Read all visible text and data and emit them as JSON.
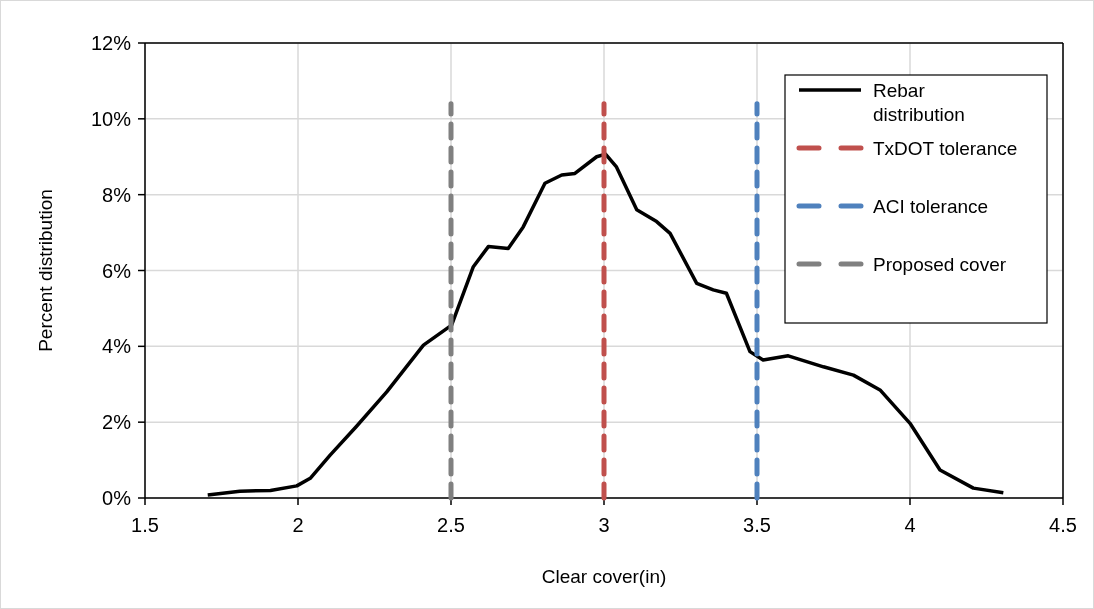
{
  "chart_data": {
    "type": "line",
    "xlabel": "Clear cover(in)",
    "ylabel": "Percent distribution",
    "xlim": [
      1.5,
      4.5
    ],
    "xticks": [
      1.5,
      2,
      2.5,
      3,
      3.5,
      4,
      4.5
    ],
    "ylim": [
      0,
      12
    ],
    "yticks": [
      {
        "value": 0,
        "label": "0%"
      },
      {
        "value": 2,
        "label": "2%"
      },
      {
        "value": 4,
        "label": "4%"
      },
      {
        "value": 6,
        "label": "6%"
      },
      {
        "value": 8,
        "label": "8%"
      },
      {
        "value": 10,
        "label": "10%"
      },
      {
        "value": 12,
        "label": "12%"
      }
    ],
    "grid": true,
    "legend": "top right",
    "series": [
      {
        "name": "Rebar distribution",
        "color": "#000000",
        "line_style": "solid",
        "x": [
          1.705,
          1.81,
          1.91,
          1.996,
          2.04,
          2.105,
          2.19,
          2.29,
          2.41,
          2.502,
          2.573,
          2.622,
          2.687,
          2.736,
          2.807,
          2.862,
          2.905,
          2.976,
          3.005,
          3.04,
          3.107,
          3.172,
          3.216,
          3.303,
          3.357,
          3.4,
          3.477,
          3.52,
          3.602,
          3.717,
          3.815,
          3.902,
          4.0,
          4.098,
          4.207,
          4.305
        ],
        "values": [
          0.08,
          0.18,
          0.2,
          0.32,
          0.52,
          1.13,
          1.88,
          2.8,
          4.03,
          4.56,
          6.1,
          6.63,
          6.58,
          7.15,
          8.3,
          8.52,
          8.56,
          9.0,
          9.07,
          8.74,
          7.6,
          7.29,
          6.98,
          5.66,
          5.49,
          5.4,
          3.86,
          3.64,
          3.75,
          3.46,
          3.24,
          2.85,
          1.97,
          0.74,
          0.26,
          0.14
        ]
      },
      {
        "name": "TxDOT tolerance",
        "color": "#c0504d",
        "line_style": "dashed",
        "x": [
          3,
          3
        ],
        "values": [
          0,
          10.4
        ]
      },
      {
        "name": "ACI tolerance",
        "color": "#4f81bd",
        "line_style": "dashed",
        "x": [
          3.5,
          3.5
        ],
        "values": [
          0,
          10.4
        ]
      },
      {
        "name": "Proposed cover",
        "color": "#808080",
        "line_style": "dashed",
        "x": [
          2.5,
          2.5
        ],
        "values": [
          0,
          10.4
        ]
      }
    ]
  }
}
